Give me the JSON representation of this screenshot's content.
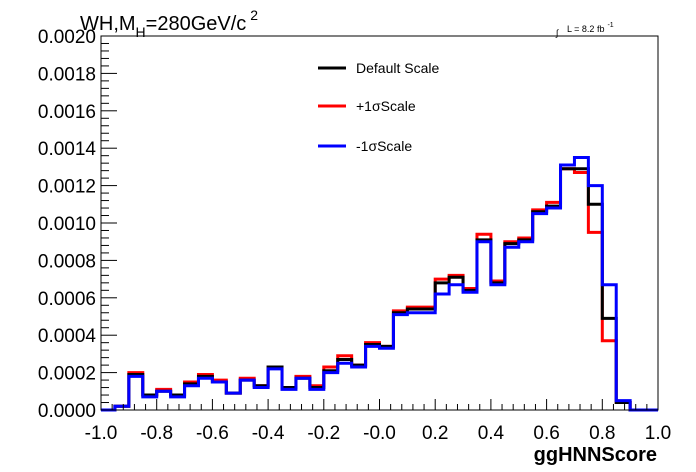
{
  "chart_data": {
    "type": "histogram-step",
    "title": {
      "main": "WH,M",
      "sub": "H",
      "rest": "=280GeV/c",
      "sup": "2"
    },
    "luminosity": {
      "integral": "∫",
      "text": "L = 8.2 fb",
      "sup": "-1"
    },
    "xlabel": "ggHNNScore",
    "ylabel": "",
    "xlim": [
      -1.0,
      1.0
    ],
    "ylim": [
      0.0,
      0.002
    ],
    "x_ticks": [
      "-1.0",
      "-0.8",
      "-0.6",
      "-0.4",
      "-0.2",
      "-0.0",
      "0.2",
      "0.4",
      "0.6",
      "0.8",
      "1.0"
    ],
    "y_ticks": [
      "0.0000",
      "0.0002",
      "0.0004",
      "0.0006",
      "0.0008",
      "0.0010",
      "0.0012",
      "0.0014",
      "0.0016",
      "0.0018",
      "0.0020"
    ],
    "bin_edges": [
      -1.0,
      -0.95,
      -0.9,
      -0.85,
      -0.8,
      -0.75,
      -0.7,
      -0.65,
      -0.6,
      -0.55,
      -0.5,
      -0.45,
      -0.4,
      -0.35,
      -0.3,
      -0.25,
      -0.2,
      -0.15,
      -0.1,
      -0.05,
      0.0,
      0.05,
      0.1,
      0.15,
      0.2,
      0.25,
      0.3,
      0.35,
      0.4,
      0.45,
      0.5,
      0.55,
      0.6,
      0.65,
      0.7,
      0.75,
      0.8,
      0.85,
      0.9,
      0.95,
      1.0
    ],
    "legend_position": "top-center",
    "series": [
      {
        "name": "Default Scale",
        "color": "#000000",
        "values": [
          0.0,
          2e-05,
          0.00019,
          8e-05,
          0.0001,
          8e-05,
          0.00014,
          0.00018,
          0.00015,
          9e-05,
          0.00016,
          0.00013,
          0.00023,
          0.00012,
          0.00017,
          0.00012,
          0.00021,
          0.00027,
          0.00024,
          0.00035,
          0.00034,
          0.00052,
          0.00054,
          0.00054,
          0.00068,
          0.00071,
          0.00064,
          0.00091,
          0.00068,
          0.00089,
          0.00091,
          0.00106,
          0.00109,
          0.00129,
          0.00129,
          0.0011,
          0.00049,
          4e-05,
          0.0,
          0.0
        ]
      },
      {
        "name": "+1σScale",
        "color": "#ff0000",
        "values": [
          0.0,
          2e-05,
          0.0002,
          8e-05,
          0.00011,
          8e-05,
          0.00015,
          0.00019,
          0.00016,
          9e-05,
          0.00017,
          0.00013,
          0.00023,
          0.00012,
          0.00018,
          0.00013,
          0.00023,
          0.00029,
          0.00024,
          0.00036,
          0.00034,
          0.00053,
          0.00055,
          0.00055,
          0.0007,
          0.00072,
          0.00065,
          0.00094,
          0.00069,
          0.0009,
          0.00092,
          0.00107,
          0.00111,
          0.00129,
          0.00127,
          0.00095,
          0.00037,
          4e-05,
          0.0,
          0.0
        ]
      },
      {
        "name": "-1σScale",
        "color": "#0000ff",
        "values": [
          0.0,
          2e-05,
          0.00018,
          7e-05,
          0.0001,
          7e-05,
          0.00013,
          0.00017,
          0.00015,
          9e-05,
          0.00016,
          0.00012,
          0.00022,
          0.00011,
          0.00017,
          0.00011,
          0.0002,
          0.00025,
          0.00023,
          0.00034,
          0.00033,
          0.00051,
          0.00052,
          0.00052,
          0.00062,
          0.00067,
          0.00063,
          0.0009,
          0.00067,
          0.00087,
          0.0009,
          0.00105,
          0.00108,
          0.00131,
          0.00135,
          0.0012,
          0.00067,
          5e-05,
          0.0,
          0.0
        ]
      }
    ]
  }
}
